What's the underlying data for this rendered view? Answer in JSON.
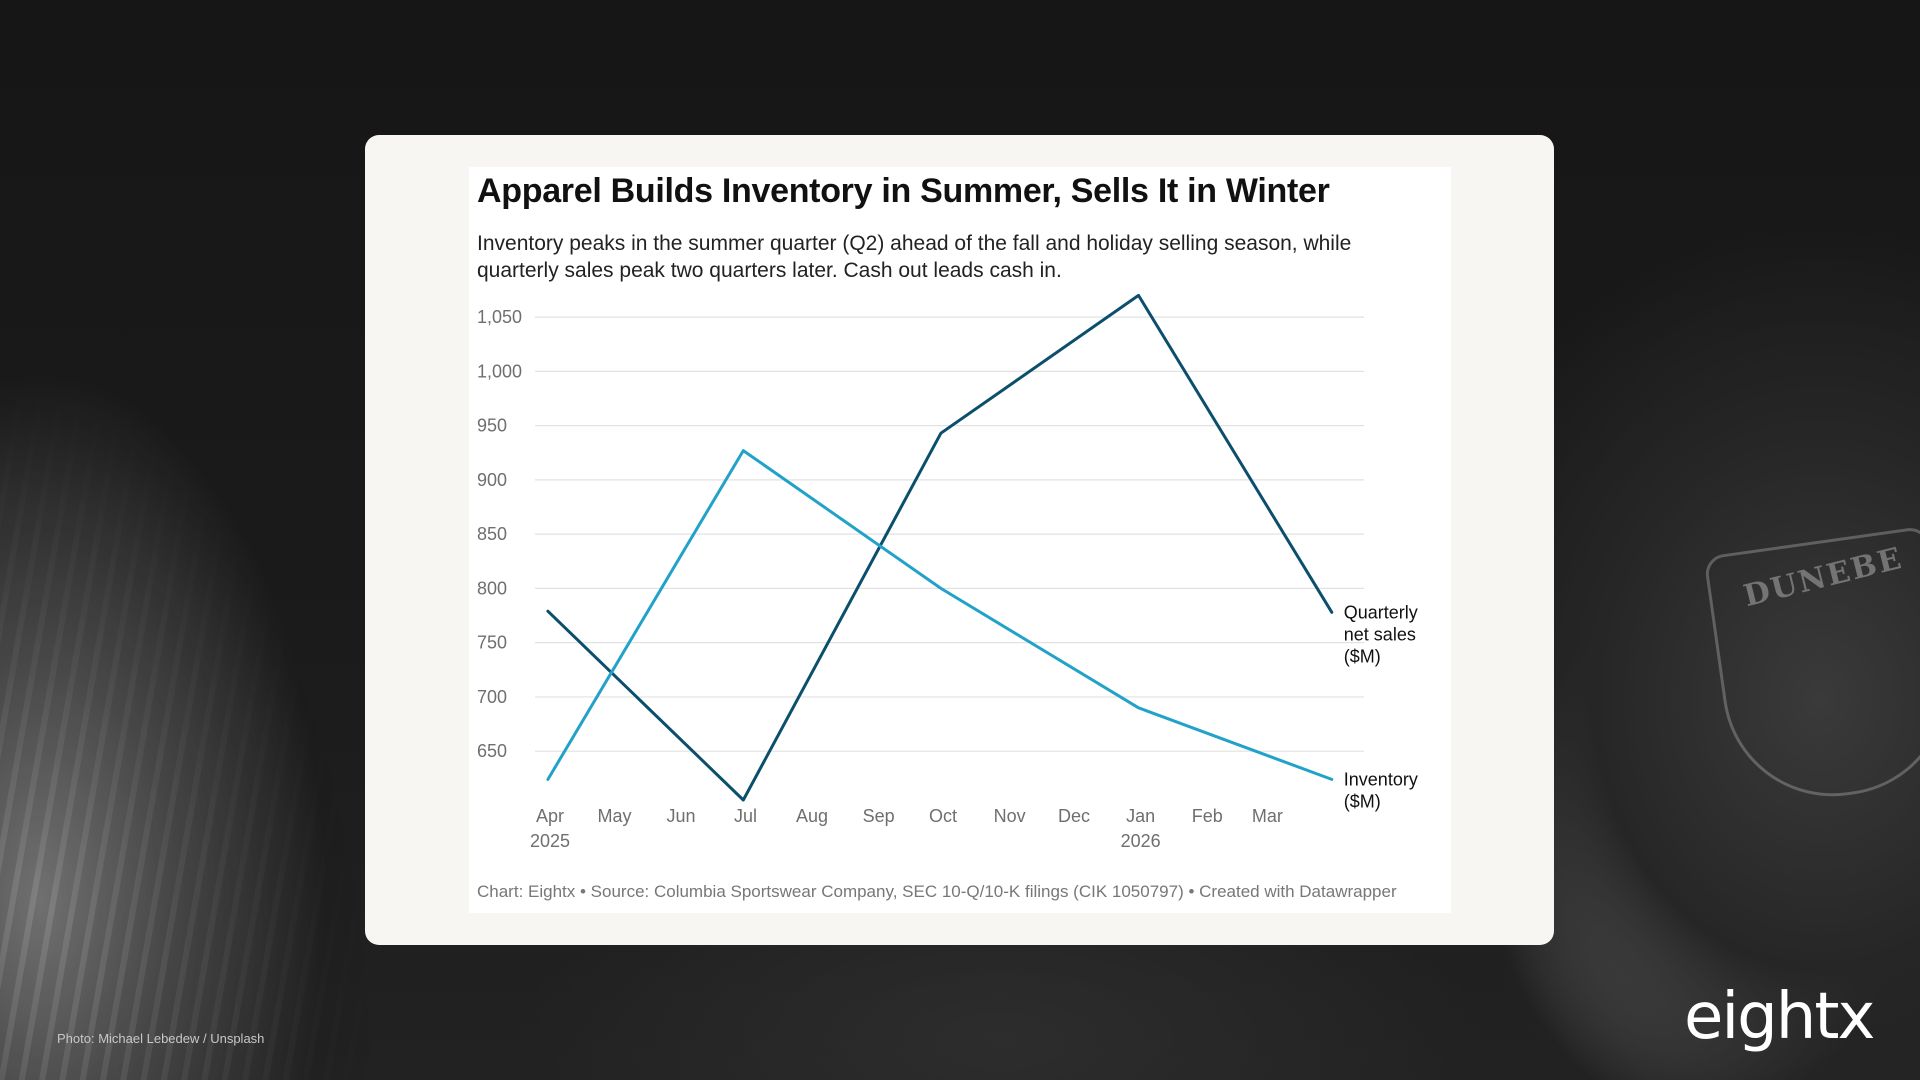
{
  "chart_data": {
    "type": "line",
    "title": "Apparel Builds Inventory in Summer, Sells It in Winter",
    "subtitle": "Inventory peaks in the summer quarter (Q2) ahead of the fall and holiday selling season, while quarterly sales peak two quarters later. Cash out leads cash in.",
    "x_ticks": [
      {
        "label": "Apr",
        "sublabel": "2025",
        "date": "2025-04-01"
      },
      {
        "label": "May",
        "sublabel": "",
        "date": "2025-05-01"
      },
      {
        "label": "Jun",
        "sublabel": "",
        "date": "2025-06-01"
      },
      {
        "label": "Jul",
        "sublabel": "",
        "date": "2025-07-01"
      },
      {
        "label": "Aug",
        "sublabel": "",
        "date": "2025-08-01"
      },
      {
        "label": "Sep",
        "sublabel": "",
        "date": "2025-09-01"
      },
      {
        "label": "Oct",
        "sublabel": "",
        "date": "2025-10-01"
      },
      {
        "label": "Nov",
        "sublabel": "",
        "date": "2025-11-01"
      },
      {
        "label": "Dec",
        "sublabel": "",
        "date": "2025-12-01"
      },
      {
        "label": "Jan",
        "sublabel": "2026",
        "date": "2026-01-01"
      },
      {
        "label": "Feb",
        "sublabel": "",
        "date": "2026-02-01"
      },
      {
        "label": "Mar",
        "sublabel": "",
        "date": "2026-03-01"
      }
    ],
    "xlim": [
      "2025-03-25",
      "2026-04-15"
    ],
    "y_ticks": [
      650,
      700,
      750,
      800,
      850,
      900,
      950,
      1000,
      1050
    ],
    "y_tick_labels": [
      "650",
      "700",
      "750",
      "800",
      "850",
      "900",
      "950",
      "1,000",
      "1,050"
    ],
    "ylim": [
      605,
      1075
    ],
    "grid": true,
    "series": [
      {
        "name": "Quarterly net sales ($M)",
        "label_lines": [
          "Quarterly",
          "net sales",
          "($M)"
        ],
        "color": "#0b4f6c",
        "x": [
          "2025-03-31",
          "2025-06-30",
          "2025-09-30",
          "2025-12-31",
          "2026-03-31"
        ],
        "y": [
          779,
          605,
          943,
          1070,
          778
        ]
      },
      {
        "name": "Inventory ($M)",
        "label_lines": [
          "Inventory",
          "($M)"
        ],
        "color": "#22a2c9",
        "x": [
          "2025-03-31",
          "2025-06-30",
          "2025-09-30",
          "2025-12-31",
          "2026-03-31"
        ],
        "y": [
          624,
          927,
          800,
          690,
          624
        ]
      }
    ]
  },
  "footer": {
    "notes": "Chart: Eightx • Source: Columbia Sportswear Company, SEC 10-Q/10-K filings (CIK 1050797) • Created with Datawrapper"
  },
  "photo_credit": "Photo: Michael Lebedew / Unsplash",
  "brand": {
    "logo_text": "eightx"
  },
  "background": {
    "patch_text": "DUNEBE"
  }
}
